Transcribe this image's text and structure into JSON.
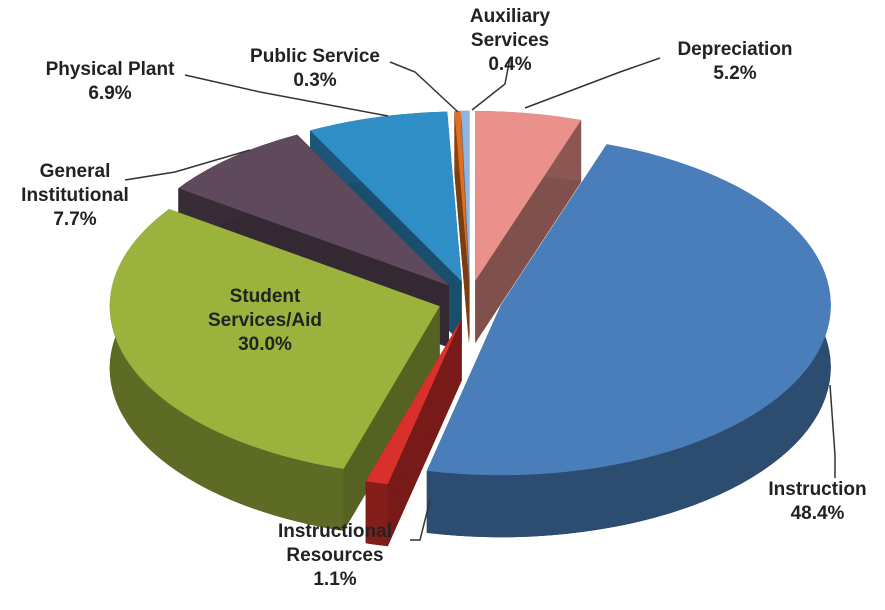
{
  "chart_data": {
    "type": "pie",
    "categories": [
      "Depreciation",
      "Instruction",
      "Instructional Resources",
      "Student Services/Aid",
      "General Institutional",
      "Physical Plant",
      "Public Service",
      "Auxiliary Services"
    ],
    "values": [
      5.2,
      48.4,
      1.1,
      30.0,
      7.7,
      6.9,
      0.3,
      0.4
    ],
    "value_labels": [
      "5.2%",
      "48.4%",
      "1.1%",
      "30.0%",
      "7.7%",
      "6.9%",
      "0.3%",
      "0.4%"
    ],
    "colors": [
      "#e9918a",
      "#4a7ebb",
      "#d9302c",
      "#9bb33c",
      "#5e4a5c",
      "#2f8ec6",
      "#e0701f",
      "#8db4e2"
    ]
  }
}
